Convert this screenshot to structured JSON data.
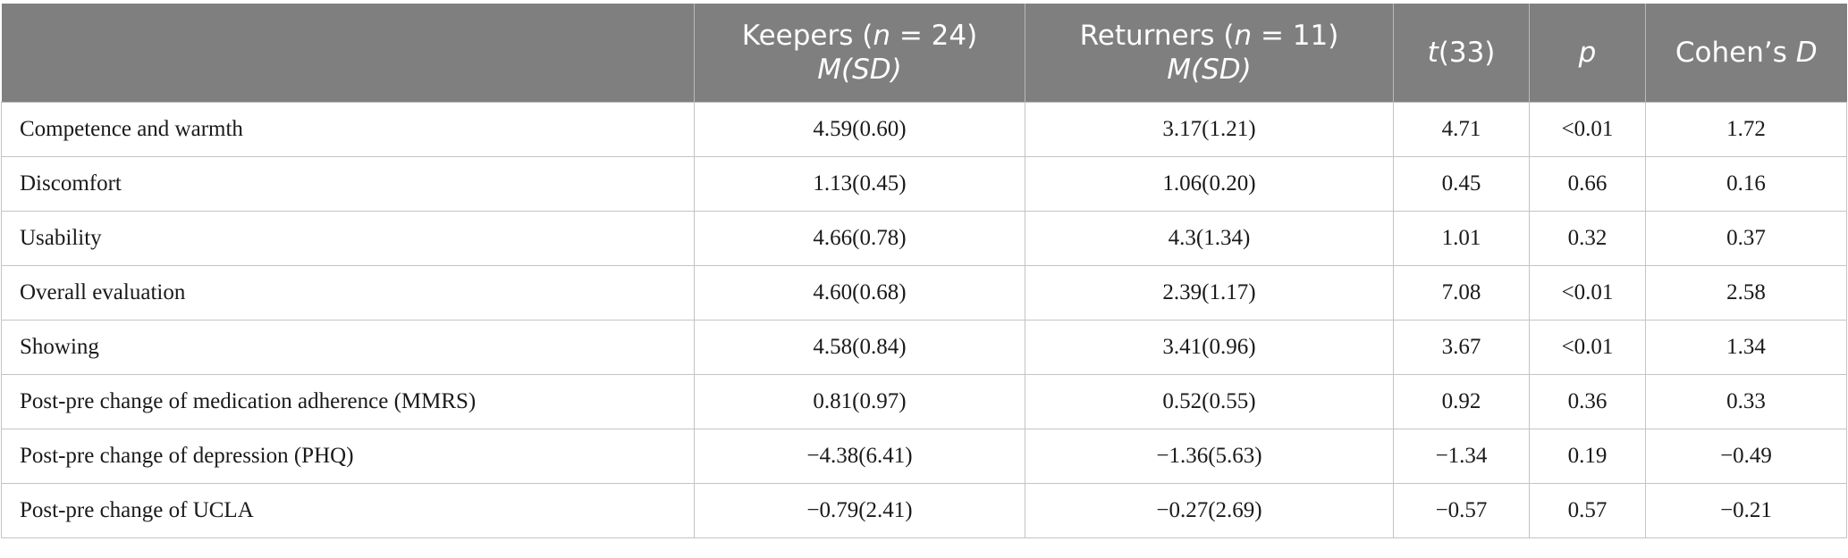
{
  "header": {
    "col0": "",
    "keepers_prefix": "Keepers (",
    "keepers_n": "n",
    "keepers_suffix": " = 24)",
    "keepers_stat": "M(SD)",
    "returners_prefix": "Returners (",
    "returners_n": "n",
    "returners_suffix": " = 11)",
    "returners_stat": "M(SD)",
    "t_italic": "t",
    "t_rest": "(33)",
    "p": "p",
    "cohens_prefix": "Cohen’s ",
    "cohens_d": "D"
  },
  "rows": [
    {
      "label": "Competence and warmth",
      "keepers": "4.59(0.60)",
      "returners": "3.17(1.21)",
      "t": "4.71",
      "p": "<0.01",
      "d": "1.72"
    },
    {
      "label": "Discomfort",
      "keepers": "1.13(0.45)",
      "returners": "1.06(0.20)",
      "t": "0.45",
      "p": "0.66",
      "d": "0.16"
    },
    {
      "label": "Usability",
      "keepers": "4.66(0.78)",
      "returners": "4.3(1.34)",
      "t": "1.01",
      "p": "0.32",
      "d": "0.37"
    },
    {
      "label": "Overall evaluation",
      "keepers": "4.60(0.68)",
      "returners": "2.39(1.17)",
      "t": "7.08",
      "p": "<0.01",
      "d": "2.58"
    },
    {
      "label": "Showing",
      "keepers": "4.58(0.84)",
      "returners": "3.41(0.96)",
      "t": "3.67",
      "p": "<0.01",
      "d": "1.34"
    },
    {
      "label": "Post-pre change of medication adherence (MMRS)",
      "keepers": "0.81(0.97)",
      "returners": "0.52(0.55)",
      "t": "0.92",
      "p": "0.36",
      "d": "0.33"
    },
    {
      "label": "Post-pre change of depression (PHQ)",
      "keepers": "−4.38(6.41)",
      "returners": "−1.36(5.63)",
      "t": "−1.34",
      "p": "0.19",
      "d": "−0.49"
    },
    {
      "label": "Post-pre change of UCLA",
      "keepers": "−0.79(2.41)",
      "returners": "−0.27(2.69)",
      "t": "−0.57",
      "p": "0.57",
      "d": "−0.21"
    }
  ],
  "colors": {
    "header_bg": "#7f7f80",
    "header_text": "#ffffff",
    "grid": "#c4c4c4"
  }
}
